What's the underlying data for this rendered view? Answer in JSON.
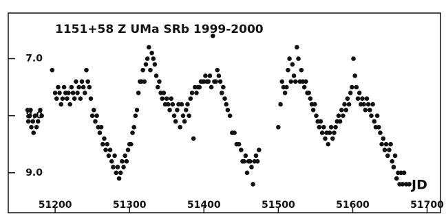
{
  "chart_data": {
    "type": "scatter",
    "title": "1151+58  Z UMa  SRb  1999-2000",
    "x_label": "JD",
    "color": "#111111",
    "xlim": [
      51137,
      51718
    ],
    "ylim": [
      9.7,
      6.2
    ],
    "xticks": [
      51200,
      51300,
      51400,
      51500,
      51600,
      51700
    ],
    "yticks": [
      {
        "value": 7,
        "label": "7.0"
      },
      {
        "value": 8,
        "label": "8.0"
      },
      {
        "value": 9,
        "label": "9.0"
      }
    ],
    "x": [
      51163,
      51164,
      51166,
      51167,
      51168,
      51170,
      51171,
      51173,
      51175,
      51177,
      51180,
      51182,
      51196,
      51200,
      51202,
      51204,
      51206,
      51208,
      51210,
      51212,
      51214,
      51216,
      51218,
      51220,
      51222,
      51224,
      51226,
      51228,
      51230,
      51232,
      51234,
      51236,
      51238,
      51240,
      51242,
      51244,
      51246,
      51248,
      51250,
      51252,
      51254,
      51256,
      51258,
      51260,
      51262,
      51264,
      51266,
      51268,
      51270,
      51272,
      51274,
      51276,
      51278,
      51280,
      51282,
      51284,
      51286,
      51288,
      51290,
      51292,
      51294,
      51296,
      51298,
      51300,
      51302,
      51304,
      51306,
      51308,
      51310,
      51312,
      51314,
      51316,
      51318,
      51320,
      51322,
      51324,
      51326,
      51328,
      51330,
      51332,
      51334,
      51336,
      51338,
      51340,
      51342,
      51344,
      51346,
      51348,
      51350,
      51352,
      51354,
      51356,
      51358,
      51360,
      51362,
      51364,
      51366,
      51368,
      51370,
      51372,
      51374,
      51376,
      51378,
      51380,
      51382,
      51384,
      51386,
      51388,
      51390,
      51392,
      51394,
      51396,
      51398,
      51400,
      51402,
      51404,
      51406,
      51408,
      51410,
      51412,
      51414,
      51416,
      51418,
      51420,
      51422,
      51424,
      51426,
      51428,
      51430,
      51432,
      51435,
      51438,
      51441,
      51444,
      51447,
      51450,
      51452,
      51454,
      51456,
      51458,
      51460,
      51462,
      51464,
      51466,
      51468,
      51470,
      51472,
      51474,
      51500,
      51503,
      51505,
      51507,
      51509,
      51511,
      51513,
      51515,
      51517,
      51519,
      51521,
      51523,
      51525,
      51527,
      51529,
      51531,
      51533,
      51535,
      51537,
      51539,
      51541,
      51543,
      51545,
      51547,
      51549,
      51551,
      51553,
      51555,
      51557,
      51559,
      51561,
      51563,
      51565,
      51567,
      51569,
      51571,
      51573,
      51575,
      51577,
      51579,
      51581,
      51583,
      51585,
      51587,
      51589,
      51591,
      51593,
      51595,
      51597,
      51599,
      51601,
      51603,
      51605,
      51607,
      51609,
      51611,
      51613,
      51615,
      51617,
      51619,
      51621,
      51623,
      51625,
      51627,
      51629,
      51631,
      51633,
      51635,
      51637,
      51639,
      51641,
      51643,
      51645,
      51647,
      51649,
      51651,
      51653,
      51655,
      51657,
      51659,
      51661,
      51663,
      51665,
      51667,
      51669,
      51672,
      51676
    ],
    "values": [
      7.9,
      8.1,
      8.0,
      7.9,
      8.2,
      8.1,
      8.3,
      8.0,
      8.2,
      8.1,
      7.9,
      8.0,
      7.2,
      7.6,
      7.7,
      7.5,
      7.6,
      7.8,
      7.7,
      7.5,
      7.6,
      7.7,
      7.6,
      7.8,
      7.5,
      7.6,
      7.7,
      7.4,
      7.6,
      7.5,
      7.7,
      7.4,
      7.5,
      7.6,
      7.2,
      7.4,
      7.5,
      7.7,
      8.0,
      7.9,
      8.1,
      8.0,
      8.2,
      8.3,
      8.2,
      8.5,
      8.4,
      8.6,
      8.5,
      8.7,
      8.6,
      8.8,
      8.9,
      8.7,
      9.0,
      8.9,
      9.1,
      9.0,
      8.8,
      8.9,
      8.7,
      8.8,
      8.6,
      8.5,
      8.5,
      8.3,
      8.2,
      8.0,
      7.9,
      7.6,
      7.4,
      7.4,
      7.2,
      7.4,
      7.1,
      7.0,
      6.8,
      7.2,
      6.9,
      7.0,
      7.1,
      7.3,
      7.5,
      7.4,
      7.6,
      7.7,
      7.6,
      7.8,
      7.7,
      7.8,
      7.9,
      7.7,
      7.8,
      8.0,
      8.1,
      7.9,
      7.8,
      8.2,
      7.8,
      8.0,
      8.1,
      7.9,
      7.8,
      8.0,
      7.7,
      7.6,
      8.4,
      7.5,
      7.6,
      7.5,
      7.5,
      7.4,
      7.4,
      7.4,
      7.3,
      7.4,
      7.4,
      7.3,
      7.5,
      6.6,
      7.4,
      7.4,
      7.2,
      7.3,
      7.4,
      7.6,
      7.5,
      7.7,
      7.8,
      7.9,
      8.0,
      8.3,
      8.3,
      8.5,
      8.5,
      8.6,
      8.8,
      8.8,
      8.7,
      9.0,
      8.8,
      8.8,
      8.9,
      9.2,
      8.8,
      8.7,
      8.8,
      8.6,
      8.2,
      7.8,
      7.4,
      7.5,
      7.6,
      7.5,
      7.2,
      7.0,
      7.4,
      7.1,
      7.3,
      7.4,
      6.8,
      7.0,
      7.4,
      7.2,
      7.4,
      7.5,
      7.4,
      7.6,
      7.6,
      7.7,
      7.8,
      7.9,
      7.8,
      8.0,
      8.1,
      8.2,
      8.1,
      8.3,
      8.2,
      8.4,
      8.3,
      8.5,
      8.3,
      8.2,
      8.4,
      8.3,
      8.2,
      8.1,
      8.0,
      8.1,
      7.9,
      8.0,
      7.8,
      7.9,
      7.7,
      7.8,
      7.6,
      7.5,
      7.0,
      7.3,
      7.5,
      7.7,
      7.6,
      7.8,
      7.7,
      7.8,
      7.9,
      7.7,
      7.8,
      7.9,
      8.0,
      7.8,
      8.1,
      8.2,
      8.0,
      8.2,
      8.3,
      8.5,
      8.4,
      8.6,
      8.5,
      8.7,
      8.6,
      8.5,
      8.8,
      8.9,
      8.7,
      9.1,
      9.0,
      9.2,
      9.0,
      9.2,
      9.0,
      9.2,
      9.2
    ]
  }
}
